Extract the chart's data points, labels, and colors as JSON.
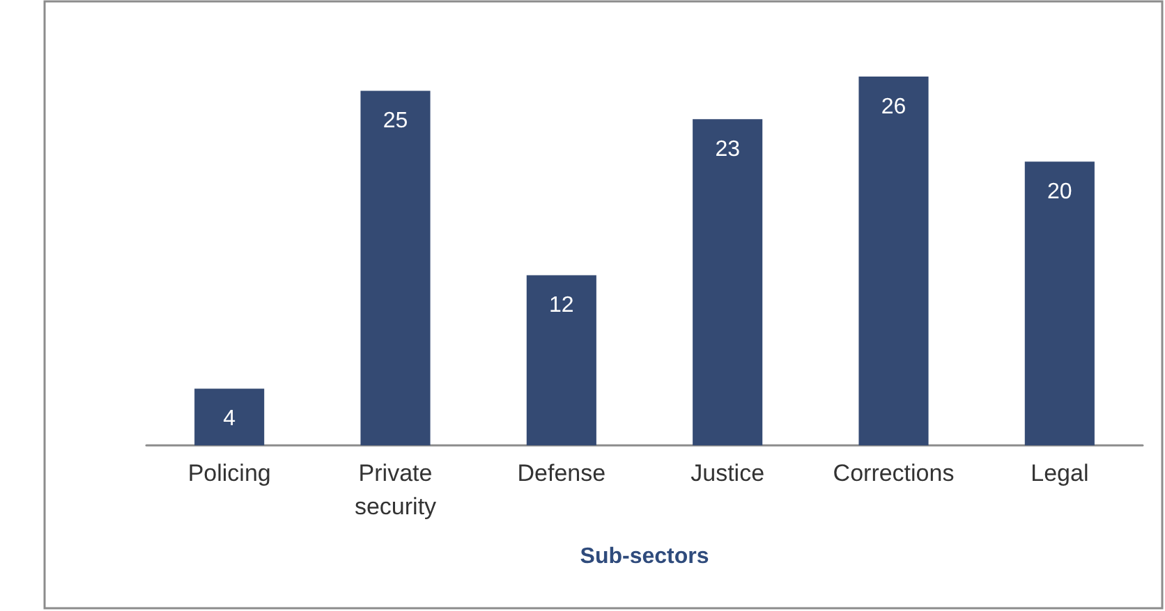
{
  "chart_data": {
    "type": "bar",
    "xlabel": "Sub-sectors",
    "categories": [
      "Policing",
      "Private\nsecurity",
      "Defense",
      "Justice",
      "Corrections",
      "Legal"
    ],
    "values": [
      4,
      25,
      12,
      23,
      26,
      20
    ],
    "color": "#344a73",
    "data_labels": true
  }
}
